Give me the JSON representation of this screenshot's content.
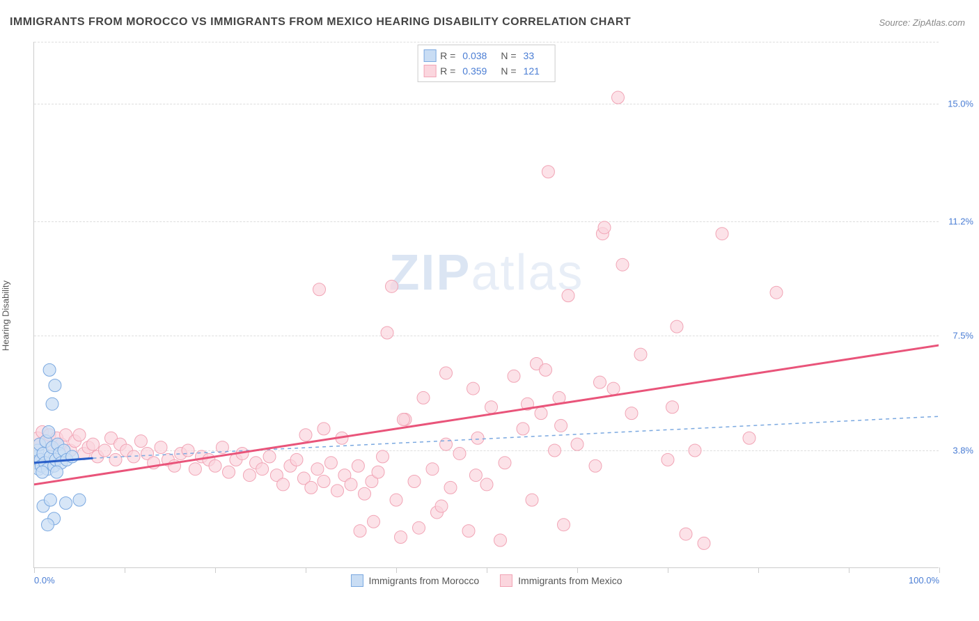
{
  "header": {
    "title": "IMMIGRANTS FROM MOROCCO VS IMMIGRANTS FROM MEXICO HEARING DISABILITY CORRELATION CHART",
    "source": "Source: ZipAtlas.com"
  },
  "ylabel": "Hearing Disability",
  "watermark": {
    "part1": "ZIP",
    "part2": "atlas"
  },
  "chart": {
    "type": "scatter",
    "xlim": [
      0,
      100
    ],
    "ylim": [
      0,
      17
    ],
    "x_ticks": [
      0,
      10,
      20,
      30,
      40,
      50,
      60,
      70,
      80,
      90,
      100
    ],
    "x_tick_labels": {
      "0": "0.0%",
      "100": "100.0%"
    },
    "y_gridlines": [
      3.8,
      7.5,
      11.2,
      15.0
    ],
    "y_tick_labels": [
      "3.8%",
      "7.5%",
      "11.2%",
      "15.0%"
    ],
    "background_color": "#ffffff",
    "grid_color": "#dddddd",
    "axis_color": "#cccccc",
    "tick_label_color": "#4a7dd4",
    "series": [
      {
        "key": "morocco",
        "label": "Immigrants from Morocco",
        "R": "0.038",
        "N": "33",
        "marker_fill": "#c9ddf4",
        "marker_stroke": "#7aa8e0",
        "marker_radius": 9,
        "marker_opacity": 0.75,
        "trend_solid": {
          "x1": 0,
          "y1": 3.4,
          "x2": 6.5,
          "y2": 3.55,
          "color": "#2a5fc9",
          "width": 3
        },
        "trend_dash": {
          "x1": 6.5,
          "y1": 3.55,
          "x2": 100,
          "y2": 4.9,
          "color": "#7aa8e0",
          "width": 1.5,
          "dash": "5,5"
        },
        "points": [
          [
            0.2,
            3.4
          ],
          [
            0.3,
            3.6
          ],
          [
            0.5,
            3.2
          ],
          [
            0.4,
            3.8
          ],
          [
            0.7,
            3.5
          ],
          [
            0.6,
            4.0
          ],
          [
            0.8,
            3.3
          ],
          [
            1.0,
            3.7
          ],
          [
            1.2,
            3.4
          ],
          [
            1.3,
            4.1
          ],
          [
            1.5,
            3.2
          ],
          [
            1.6,
            4.4
          ],
          [
            1.8,
            3.6
          ],
          [
            2.0,
            3.9
          ],
          [
            2.2,
            3.3
          ],
          [
            2.4,
            3.5
          ],
          [
            2.6,
            4.0
          ],
          [
            2.0,
            5.3
          ],
          [
            2.3,
            5.9
          ],
          [
            2.8,
            3.7
          ],
          [
            3.0,
            3.4
          ],
          [
            3.3,
            3.8
          ],
          [
            3.6,
            3.5
          ],
          [
            1.0,
            2.0
          ],
          [
            1.8,
            2.2
          ],
          [
            2.2,
            1.6
          ],
          [
            3.5,
            2.1
          ],
          [
            5.0,
            2.2
          ],
          [
            1.5,
            1.4
          ],
          [
            0.9,
            3.1
          ],
          [
            1.7,
            6.4
          ],
          [
            2.5,
            3.1
          ],
          [
            4.2,
            3.6
          ]
        ]
      },
      {
        "key": "mexico",
        "label": "Immigrants from Mexico",
        "R": "0.359",
        "N": "121",
        "marker_fill": "#fbd6de",
        "marker_stroke": "#f1a4b5",
        "marker_radius": 9,
        "marker_opacity": 0.7,
        "trend_solid": {
          "x1": 0,
          "y1": 2.7,
          "x2": 100,
          "y2": 7.2,
          "color": "#e9547a",
          "width": 3
        },
        "trend_dash": null,
        "points": [
          [
            0.4,
            4.2
          ],
          [
            0.6,
            4.0
          ],
          [
            0.9,
            4.4
          ],
          [
            1.3,
            4.1
          ],
          [
            1.7,
            4.3
          ],
          [
            2.0,
            3.9
          ],
          [
            2.5,
            4.2
          ],
          [
            3.0,
            4.0
          ],
          [
            3.5,
            4.3
          ],
          [
            4.0,
            3.8
          ],
          [
            4.5,
            4.1
          ],
          [
            5.0,
            4.3
          ],
          [
            5.5,
            3.7
          ],
          [
            6.0,
            3.9
          ],
          [
            6.5,
            4.0
          ],
          [
            7.0,
            3.6
          ],
          [
            7.8,
            3.8
          ],
          [
            8.5,
            4.2
          ],
          [
            9.0,
            3.5
          ],
          [
            9.5,
            4.0
          ],
          [
            10.2,
            3.8
          ],
          [
            11.0,
            3.6
          ],
          [
            11.8,
            4.1
          ],
          [
            12.5,
            3.7
          ],
          [
            13.2,
            3.4
          ],
          [
            14.0,
            3.9
          ],
          [
            14.8,
            3.5
          ],
          [
            15.5,
            3.3
          ],
          [
            16.2,
            3.7
          ],
          [
            17.0,
            3.8
          ],
          [
            17.8,
            3.2
          ],
          [
            18.5,
            3.6
          ],
          [
            19.3,
            3.5
          ],
          [
            20.0,
            3.3
          ],
          [
            20.8,
            3.9
          ],
          [
            21.5,
            3.1
          ],
          [
            22.3,
            3.5
          ],
          [
            23.0,
            3.7
          ],
          [
            23.8,
            3.0
          ],
          [
            24.5,
            3.4
          ],
          [
            25.2,
            3.2
          ],
          [
            26.0,
            3.6
          ],
          [
            26.8,
            3.0
          ],
          [
            27.5,
            2.7
          ],
          [
            28.3,
            3.3
          ],
          [
            29.0,
            3.5
          ],
          [
            29.8,
            2.9
          ],
          [
            30.6,
            2.6
          ],
          [
            31.3,
            3.2
          ],
          [
            32.0,
            2.8
          ],
          [
            32.8,
            3.4
          ],
          [
            33.5,
            2.5
          ],
          [
            34.3,
            3.0
          ],
          [
            35.0,
            2.7
          ],
          [
            35.8,
            3.3
          ],
          [
            36.5,
            2.4
          ],
          [
            37.3,
            2.8
          ],
          [
            38.0,
            3.1
          ],
          [
            30.0,
            4.3
          ],
          [
            32.0,
            4.5
          ],
          [
            34.0,
            4.2
          ],
          [
            36.0,
            1.2
          ],
          [
            37.5,
            1.5
          ],
          [
            38.5,
            3.6
          ],
          [
            39.0,
            7.6
          ],
          [
            40.0,
            2.2
          ],
          [
            40.5,
            1.0
          ],
          [
            41.0,
            4.8
          ],
          [
            42.0,
            2.8
          ],
          [
            42.5,
            1.3
          ],
          [
            43.0,
            5.5
          ],
          [
            44.0,
            3.2
          ],
          [
            44.5,
            1.8
          ],
          [
            45.0,
            2.0
          ],
          [
            45.5,
            4.0
          ],
          [
            46.0,
            2.6
          ],
          [
            47.0,
            3.7
          ],
          [
            48.0,
            1.2
          ],
          [
            48.5,
            5.8
          ],
          [
            49.0,
            4.2
          ],
          [
            50.0,
            2.7
          ],
          [
            50.5,
            5.2
          ],
          [
            51.5,
            0.9
          ],
          [
            52.0,
            3.4
          ],
          [
            53.0,
            6.2
          ],
          [
            54.0,
            4.5
          ],
          [
            55.0,
            2.2
          ],
          [
            55.5,
            6.6
          ],
          [
            56.0,
            5.0
          ],
          [
            56.5,
            6.4
          ],
          [
            56.8,
            12.8
          ],
          [
            57.5,
            3.8
          ],
          [
            58.0,
            5.5
          ],
          [
            58.5,
            1.4
          ],
          [
            59.0,
            8.8
          ],
          [
            60.0,
            4.0
          ],
          [
            62.0,
            3.3
          ],
          [
            62.5,
            6.0
          ],
          [
            62.8,
            10.8
          ],
          [
            63.0,
            11.0
          ],
          [
            64.0,
            5.8
          ],
          [
            64.5,
            15.2
          ],
          [
            65.0,
            9.8
          ],
          [
            66.0,
            5.0
          ],
          [
            67.0,
            6.9
          ],
          [
            70.0,
            3.5
          ],
          [
            71.0,
            7.8
          ],
          [
            72.0,
            1.1
          ],
          [
            73.0,
            3.8
          ],
          [
            74.0,
            0.8
          ],
          [
            76.0,
            10.8
          ],
          [
            79.0,
            4.2
          ],
          [
            82.0,
            8.9
          ],
          [
            31.5,
            9.0
          ],
          [
            40.8,
            4.8
          ],
          [
            48.8,
            3.0
          ],
          [
            54.5,
            5.3
          ],
          [
            58.2,
            4.6
          ],
          [
            70.5,
            5.2
          ],
          [
            45.5,
            6.3
          ],
          [
            39.5,
            9.1
          ]
        ]
      }
    ]
  },
  "legend_bottom": [
    {
      "series": "morocco"
    },
    {
      "series": "mexico"
    }
  ]
}
